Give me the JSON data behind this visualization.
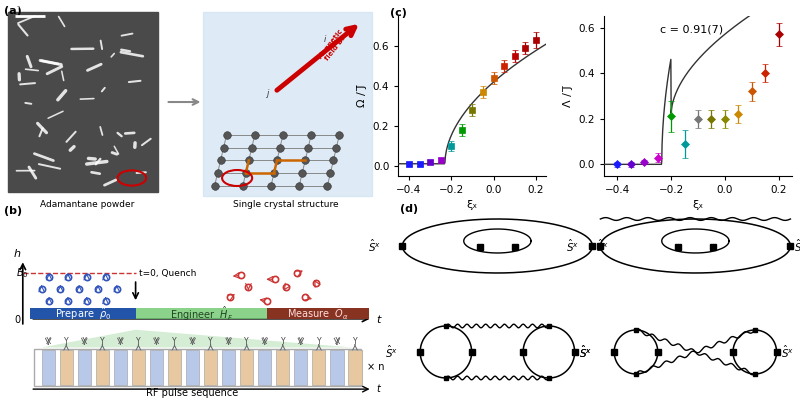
{
  "panel_labels": [
    "(a)",
    "(b)",
    "(c)",
    "(d)"
  ],
  "plot_c_left": {
    "xlabel": "ξₓ",
    "ylabel": "Ω / J̅",
    "xlim": [
      -0.45,
      0.25
    ],
    "ylim": [
      -0.05,
      0.75
    ],
    "yticks": [
      0.0,
      0.2,
      0.4,
      0.6
    ],
    "xticks": [
      -0.4,
      -0.2,
      0.0,
      0.2
    ],
    "data_x": [
      -0.4,
      -0.35,
      -0.3,
      -0.25,
      -0.2,
      -0.15,
      -0.1,
      -0.05,
      0.0,
      0.05,
      0.1,
      0.15,
      0.2
    ],
    "data_y": [
      0.01,
      0.01,
      0.02,
      0.03,
      0.1,
      0.18,
      0.28,
      0.37,
      0.44,
      0.5,
      0.55,
      0.59,
      0.63
    ],
    "colors": [
      "#1a1aff",
      "#1a1aff",
      "#6600cc",
      "#9900cc",
      "#009999",
      "#009900",
      "#777700",
      "#cc8800",
      "#cc5500",
      "#cc2200",
      "#bb0000",
      "#aa0000",
      "#aa0000"
    ],
    "errorbars": [
      0.01,
      0.01,
      0.01,
      0.01,
      0.025,
      0.03,
      0.03,
      0.03,
      0.03,
      0.03,
      0.03,
      0.03,
      0.04
    ],
    "marker": "s"
  },
  "plot_c_right": {
    "title": "c = 0.91(7)",
    "xlabel": "ξₓ",
    "ylabel": "Λ / J̅",
    "xlim": [
      -0.45,
      0.25
    ],
    "ylim": [
      -0.05,
      0.65
    ],
    "yticks": [
      0.0,
      0.2,
      0.4,
      0.6
    ],
    "xticks": [
      -0.4,
      -0.2,
      0.0,
      0.2
    ],
    "data_x": [
      -0.4,
      -0.35,
      -0.3,
      -0.25,
      -0.2,
      -0.15,
      -0.1,
      -0.05,
      0.0,
      0.05,
      0.1,
      0.15,
      0.2
    ],
    "data_y": [
      0.0,
      0.0,
      0.01,
      0.03,
      0.21,
      0.09,
      0.2,
      0.2,
      0.2,
      0.22,
      0.32,
      0.4,
      0.57
    ],
    "colors": [
      "#1a1aff",
      "#6600cc",
      "#9900cc",
      "#cc00cc",
      "#009900",
      "#009999",
      "#777777",
      "#777700",
      "#888800",
      "#cc8800",
      "#cc5500",
      "#cc2200",
      "#aa0000"
    ],
    "errorbars": [
      0.01,
      0.01,
      0.01,
      0.02,
      0.07,
      0.06,
      0.04,
      0.04,
      0.04,
      0.04,
      0.04,
      0.04,
      0.05
    ],
    "marker": "D"
  },
  "bg_color": "#ffffff"
}
